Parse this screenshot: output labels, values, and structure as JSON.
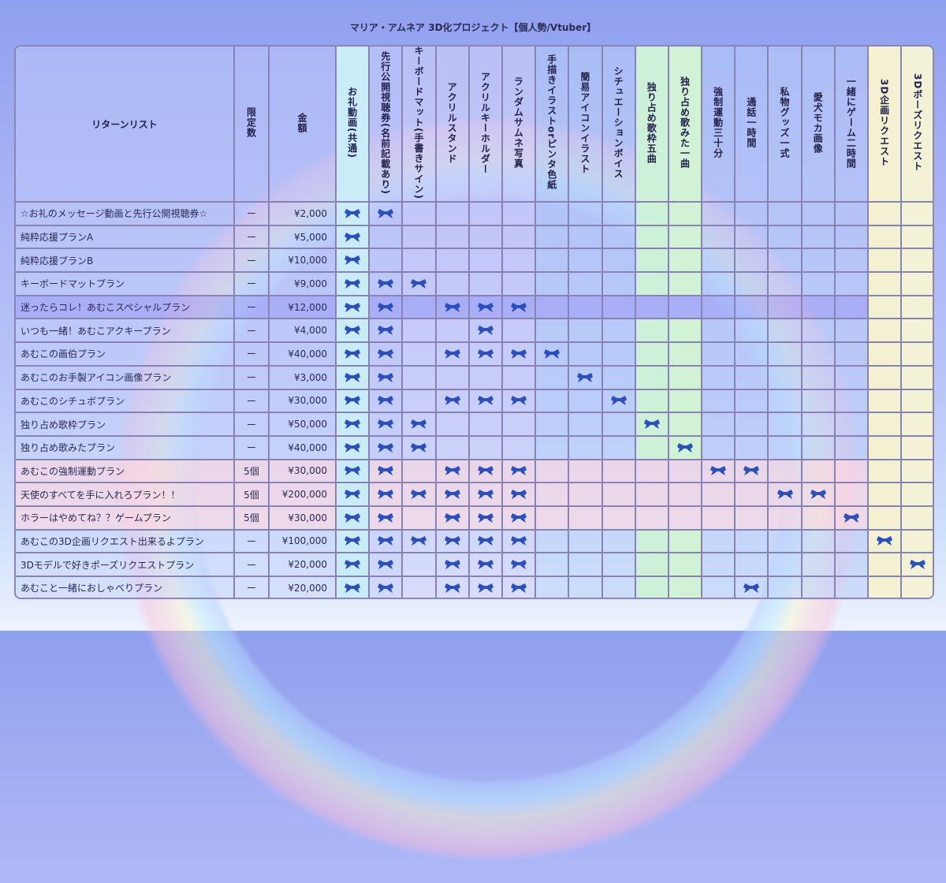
{
  "title": "マリア・アムネア 3D化プロジェクト【個人勢/Vtuber】",
  "headers": {
    "name": "リターンリスト",
    "limit": "限定数",
    "price": "金額"
  },
  "columns": [
    "お礼動画(共通)",
    "先行公開視聴券(名前記載あり)",
    "キーボードマット(手書きサイン)",
    "アクリルスタンド",
    "アクリルキーホルダー",
    "ランダムサムネ写真",
    "手描きイラストorピンタ色紙",
    "簡易アイコンイラスト",
    "シチュエーションボイス",
    "独り占め歌枠五曲",
    "独り占め歌みた一曲",
    "強制運動三十分",
    "通話一時間",
    "私物グッズ一式",
    "愛犬モカ画像",
    "一緒にゲーム二時間",
    "3D企画リクエスト",
    "3Dポーズリクエスト"
  ],
  "column_colors": [
    "#c9ecf8",
    "rgba(200,205,250,.6)",
    "rgba(210,210,250,.6)",
    "rgba(210,210,250,.6)",
    "rgba(210,210,250,.6)",
    "rgba(210,210,250,.6)",
    "rgba(185,210,250,.55)",
    "rgba(185,210,250,.55)",
    "rgba(185,210,250,.55)",
    "#cdf0d8",
    "#d2f2d6",
    "rgba(185,205,250,.55)",
    "rgba(185,205,250,.55)",
    "rgba(190,210,250,.55)",
    "rgba(190,210,250,.55)",
    "rgba(190,205,250,.55)",
    "#f3f1d2",
    "#f4f2d6"
  ],
  "row_tints": {
    "4": "rgba(160,160,245,.55)",
    "11": "rgba(250,215,225,.7)",
    "12": "rgba(250,215,225,.7)",
    "13": "rgba(250,215,225,.7)"
  },
  "icon": "bow-icon",
  "icon_color": "#2a4fc0",
  "rows": [
    {
      "name": "☆お礼のメッセージ動画と先行公開視聴券☆",
      "limit": "ー",
      "price": "¥2,000",
      "marks": [
        0,
        1
      ]
    },
    {
      "name": "純粋応援プランA",
      "limit": "ー",
      "price": "¥5,000",
      "marks": [
        0
      ]
    },
    {
      "name": "純粋応援プランB",
      "limit": "ー",
      "price": "¥10,000",
      "marks": [
        0
      ]
    },
    {
      "name": "キーボードマットプラン",
      "limit": "ー",
      "price": "¥9,000",
      "marks": [
        0,
        1,
        2
      ]
    },
    {
      "name": "迷ったらコレ！あむこスペシャルプラン",
      "limit": "ー",
      "price": "¥12,000",
      "marks": [
        0,
        1,
        3,
        4,
        5
      ]
    },
    {
      "name": "いつも一緒！あむこアクキープラン",
      "limit": "ー",
      "price": "¥4,000",
      "marks": [
        0,
        1,
        4
      ]
    },
    {
      "name": "あむこの画伯プラン",
      "limit": "ー",
      "price": "¥40,000",
      "marks": [
        0,
        1,
        3,
        4,
        5,
        6
      ]
    },
    {
      "name": "あむこのお手製アイコン画像プラン",
      "limit": "ー",
      "price": "¥3,000",
      "marks": [
        0,
        1,
        7
      ]
    },
    {
      "name": "あむこのシチュボプラン",
      "limit": "ー",
      "price": "¥30,000",
      "marks": [
        0,
        1,
        3,
        4,
        5,
        8
      ]
    },
    {
      "name": "独り占め歌枠プラン",
      "limit": "ー",
      "price": "¥50,000",
      "marks": [
        0,
        1,
        2,
        9
      ]
    },
    {
      "name": "独り占め歌みたプラン",
      "limit": "ー",
      "price": "¥40,000",
      "marks": [
        0,
        1,
        2,
        10
      ]
    },
    {
      "name": "あむこの強制運動プラン",
      "limit": "5個",
      "price": "¥30,000",
      "marks": [
        0,
        1,
        3,
        4,
        5,
        11,
        12
      ]
    },
    {
      "name": "天使のすべてを手に入れろプラン！！",
      "limit": "5個",
      "price": "¥200,000",
      "marks": [
        0,
        1,
        2,
        3,
        4,
        5,
        13,
        14
      ]
    },
    {
      "name": "ホラーはやめてね？？ゲームプラン",
      "limit": "5個",
      "price": "¥30,000",
      "marks": [
        0,
        1,
        3,
        4,
        5,
        15
      ]
    },
    {
      "name": "あむこの3D企画リクエスト出来るよプラン",
      "limit": "ー",
      "price": "¥100,000",
      "marks": [
        0,
        1,
        2,
        3,
        4,
        5,
        16
      ]
    },
    {
      "name": "3Dモデルで好きポーズリクエストプラン",
      "limit": "ー",
      "price": "¥20,000",
      "marks": [
        0,
        1,
        3,
        4,
        5,
        17
      ]
    },
    {
      "name": "あむこと一緒におしゃべりプラン",
      "limit": "ー",
      "price": "¥20,000",
      "marks": [
        0,
        1,
        3,
        4,
        5,
        12
      ]
    }
  ]
}
